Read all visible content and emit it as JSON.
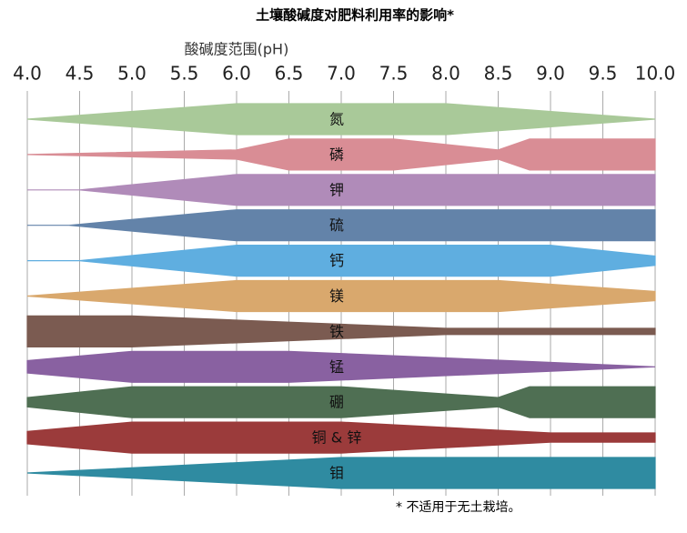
{
  "chart_data": {
    "type": "band",
    "title": "土壤酸碱度对肥料利用率的影响*",
    "x_label": "酸碱度范围(pH)",
    "footnote": "*  不适用于无土栽培。",
    "xlim": [
      4.0,
      10.0
    ],
    "xticks": [
      {
        "value": 4.0,
        "label": "4.0"
      },
      {
        "value": 4.5,
        "label": "4.5"
      },
      {
        "value": 5.0,
        "label": "5.0"
      },
      {
        "value": 5.5,
        "label": "5.5"
      },
      {
        "value": 6.0,
        "label": "6.0"
      },
      {
        "value": 6.5,
        "label": "6.5"
      },
      {
        "value": 7.0,
        "label": "7.0"
      },
      {
        "value": 7.5,
        "label": "7.5"
      },
      {
        "value": 8.0,
        "label": "8.0"
      },
      {
        "value": 8.5,
        "label": "8.5"
      },
      {
        "value": 9.0,
        "label": "9.0"
      },
      {
        "value": 9.5,
        "label": "9.5"
      },
      {
        "value": 10.0,
        "label": "10.0"
      }
    ],
    "grid": true,
    "series": [
      {
        "name": "氮",
        "color": "#a9c999",
        "x": [
          4.0,
          6.0,
          8.0,
          10.0
        ],
        "values": [
          0,
          1,
          1,
          0
        ]
      },
      {
        "name": "磷",
        "color": "#d98d95",
        "x": [
          4.0,
          6.0,
          6.5,
          7.5,
          8.5,
          8.8,
          10.0
        ],
        "values": [
          0,
          0.3,
          1,
          1,
          0.3,
          1,
          1
        ]
      },
      {
        "name": "钾",
        "color": "#b08bb9",
        "x": [
          4.0,
          4.5,
          6.0,
          10.0
        ],
        "values": [
          0,
          0,
          1,
          1
        ]
      },
      {
        "name": "硫",
        "color": "#6383a9",
        "x": [
          4.0,
          4.4,
          6.0,
          10.0
        ],
        "values": [
          0,
          0,
          1,
          1
        ]
      },
      {
        "name": "钙",
        "color": "#5faee0",
        "x": [
          4.0,
          4.5,
          6.0,
          9.0,
          10.0
        ],
        "values": [
          0,
          0,
          1,
          1,
          0.3
        ]
      },
      {
        "name": "镁",
        "color": "#d9a86d",
        "x": [
          4.0,
          6.0,
          8.5,
          10.0
        ],
        "values": [
          0,
          1,
          1,
          0.3
        ]
      },
      {
        "name": "铁",
        "color": "#7b5b51",
        "x": [
          4.0,
          5.0,
          8.0,
          10.0
        ],
        "values": [
          1,
          1,
          0.2,
          0.2
        ]
      },
      {
        "name": "锰",
        "color": "#8961a1",
        "x": [
          4.0,
          5.0,
          6.5,
          10.0
        ],
        "values": [
          0.4,
          1,
          1,
          0
        ]
      },
      {
        "name": "硼",
        "color": "#4f6f53",
        "x": [
          4.0,
          5.0,
          7.0,
          8.5,
          8.8,
          10.0
        ],
        "values": [
          0.3,
          1,
          1,
          0.3,
          1,
          1
        ]
      },
      {
        "name": "铜 & 锌",
        "color": "#9b3b3b",
        "x": [
          4.0,
          5.0,
          7.0,
          9.0,
          10.0
        ],
        "values": [
          0.4,
          1,
          1,
          0.3,
          0.3
        ]
      },
      {
        "name": "钼",
        "color": "#2f8ba1",
        "x": [
          4.0,
          7.0,
          10.0
        ],
        "values": [
          0,
          1,
          1
        ]
      }
    ]
  }
}
